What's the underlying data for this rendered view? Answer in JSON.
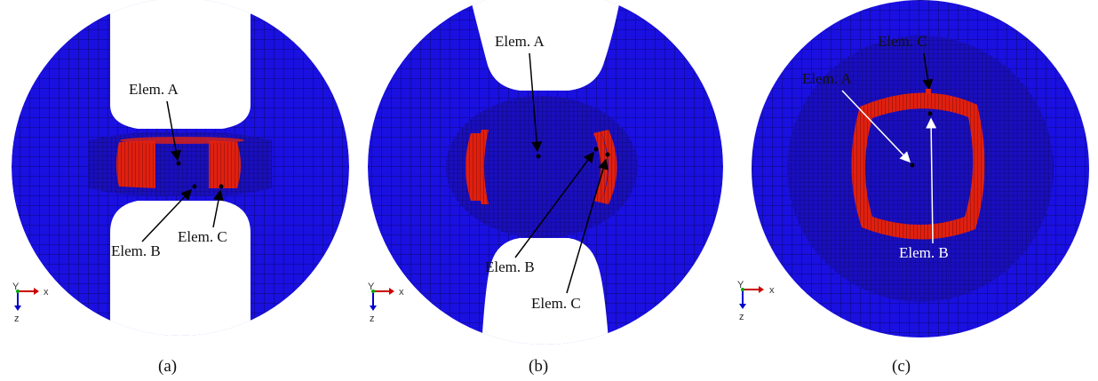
{
  "colors": {
    "mesh_fill": "#1a10e0",
    "mesh_line": "#07045a",
    "dense_fill": "#1a0fb8",
    "highlight": "#e02010",
    "arrow_black": "#000000",
    "arrow_white": "#ffffff",
    "axis_x": "#cc0000",
    "axis_z": "#0000cc",
    "axis_y": "#00aa00"
  },
  "panels": [
    {
      "id": "a",
      "caption": "(a)",
      "element_labels": [
        "Elem. A",
        "Elem. B",
        "Elem. C"
      ],
      "axis_labels": {
        "x": "x",
        "y": "Y",
        "z": "z"
      }
    },
    {
      "id": "b",
      "caption": "(b)",
      "element_labels": [
        "Elem. A",
        "Elem. B",
        "Elem. C"
      ],
      "axis_labels": {
        "x": "x",
        "y": "Y",
        "z": "z"
      }
    },
    {
      "id": "c",
      "caption": "(c)",
      "element_labels": [
        "Elem. C",
        "Elem. A",
        "Elem. B"
      ],
      "axis_labels": {
        "x": "x",
        "y": "Y",
        "z": "z"
      }
    }
  ]
}
